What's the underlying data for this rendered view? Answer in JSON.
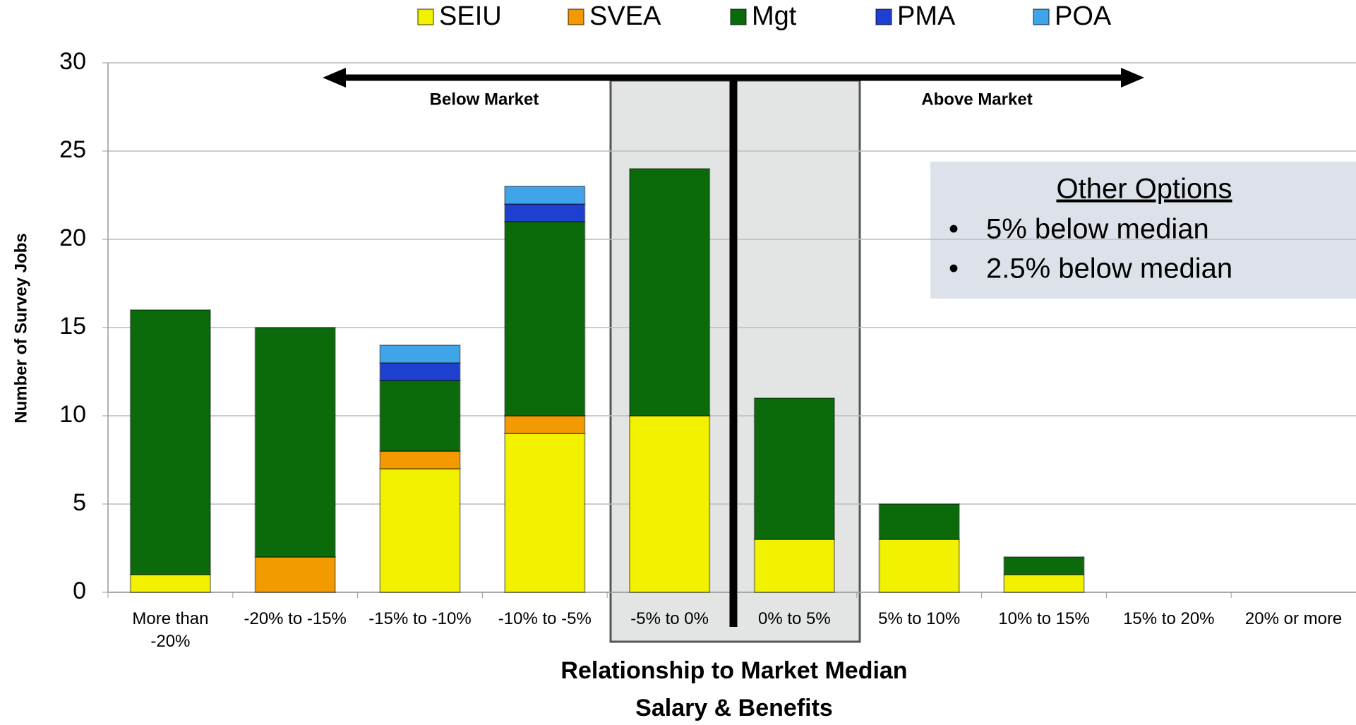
{
  "chart_data": {
    "type": "stacked_bar",
    "y_label": "Number of Survey Jobs",
    "x_label": [
      "Relationship to Market Median",
      "Salary & Benefits"
    ],
    "categories": [
      "More than -20%",
      "-20% to -15%",
      "-15% to -10%",
      "-10% to -5%",
      "-5% to 0%",
      "0% to 5%",
      "5% to 10%",
      "10% to 15%",
      "15% to 20%",
      "20% or more"
    ],
    "series": [
      {
        "name": "SEIU",
        "color": "#f2f200",
        "values": [
          1,
          0,
          7,
          9,
          10,
          3,
          3,
          1,
          0,
          0
        ]
      },
      {
        "name": "SVEA",
        "color": "#f39a00",
        "values": [
          0,
          2,
          1,
          1,
          0,
          0,
          0,
          0,
          0,
          0
        ]
      },
      {
        "name": "Mgt",
        "color": "#0b6b0b",
        "values": [
          15,
          13,
          4,
          11,
          14,
          8,
          2,
          1,
          0,
          0
        ]
      },
      {
        "name": "PMA",
        "color": "#1f3fd0",
        "values": [
          0,
          0,
          1,
          1,
          0,
          0,
          0,
          0,
          0,
          0
        ]
      },
      {
        "name": "POA",
        "color": "#3fa5e8",
        "values": [
          0,
          0,
          1,
          1,
          0,
          0,
          0,
          0,
          0,
          0
        ]
      }
    ],
    "ylim": [
      0,
      30
    ],
    "yticks": [
      0,
      5,
      10,
      15,
      20,
      25,
      30
    ],
    "grid": true,
    "legend": "top",
    "annotations": {
      "below": "Below Market",
      "above": "Above Market"
    },
    "other_options": {
      "title": "Other Options",
      "items": [
        "5% below median",
        "2.5% below median"
      ]
    }
  }
}
